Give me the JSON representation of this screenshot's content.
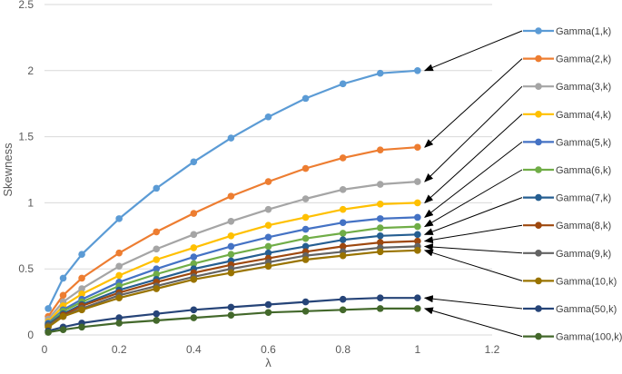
{
  "chart_data": {
    "type": "line",
    "title": "",
    "xlabel": "λ",
    "ylabel": "Skewness",
    "xlim": [
      0,
      1.2
    ],
    "ylim": [
      0,
      2.5
    ],
    "xticks": [
      "0",
      "0.2",
      "0.4",
      "0.6",
      "0.8",
      "1",
      "1.2"
    ],
    "yticks": [
      "0",
      "0.5",
      "1",
      "1.5",
      "2",
      "2.5"
    ],
    "grid": "horizontal",
    "legend_placement": "right",
    "x": [
      0.01,
      0.05,
      0.1,
      0.2,
      0.3,
      0.4,
      0.5,
      0.6,
      0.7,
      0.8,
      0.9,
      1.0
    ],
    "series": [
      {
        "name": "Gamma(1,k)",
        "color": "#5b9bd5",
        "values": [
          0.2,
          0.43,
          0.61,
          0.88,
          1.11,
          1.31,
          1.49,
          1.65,
          1.79,
          1.9,
          1.98,
          2.0
        ]
      },
      {
        "name": "Gamma(2,k)",
        "color": "#ed7d31",
        "values": [
          0.14,
          0.3,
          0.43,
          0.62,
          0.78,
          0.92,
          1.05,
          1.16,
          1.26,
          1.34,
          1.4,
          1.42
        ]
      },
      {
        "name": "Gamma(3,k)",
        "color": "#a5a5a5",
        "values": [
          0.12,
          0.25,
          0.35,
          0.52,
          0.65,
          0.76,
          0.86,
          0.95,
          1.03,
          1.1,
          1.14,
          1.16
        ]
      },
      {
        "name": "Gamma(4,k)",
        "color": "#ffc000",
        "values": [
          0.1,
          0.22,
          0.31,
          0.45,
          0.57,
          0.66,
          0.75,
          0.83,
          0.89,
          0.95,
          0.99,
          1.0
        ]
      },
      {
        "name": "Gamma(5,k)",
        "color": "#4472c4",
        "values": [
          0.09,
          0.19,
          0.27,
          0.4,
          0.5,
          0.59,
          0.67,
          0.74,
          0.8,
          0.85,
          0.88,
          0.89
        ]
      },
      {
        "name": "Gamma(6,k)",
        "color": "#70ad47",
        "values": [
          0.08,
          0.18,
          0.25,
          0.37,
          0.46,
          0.54,
          0.61,
          0.67,
          0.73,
          0.77,
          0.81,
          0.82
        ]
      },
      {
        "name": "Gamma(7,k)",
        "color": "#255e91",
        "values": [
          0.08,
          0.16,
          0.23,
          0.34,
          0.42,
          0.5,
          0.56,
          0.62,
          0.67,
          0.72,
          0.75,
          0.76
        ]
      },
      {
        "name": "Gamma(8,k)",
        "color": "#9e480e",
        "values": [
          0.07,
          0.15,
          0.22,
          0.32,
          0.4,
          0.47,
          0.53,
          0.58,
          0.63,
          0.67,
          0.7,
          0.71
        ]
      },
      {
        "name": "Gamma(9,k)",
        "color": "#636363",
        "values": [
          0.07,
          0.14,
          0.2,
          0.3,
          0.37,
          0.44,
          0.5,
          0.55,
          0.6,
          0.63,
          0.66,
          0.67
        ]
      },
      {
        "name": "Gamma(10,k)",
        "color": "#997300",
        "values": [
          0.06,
          0.14,
          0.19,
          0.28,
          0.35,
          0.42,
          0.47,
          0.52,
          0.57,
          0.6,
          0.63,
          0.64
        ]
      },
      {
        "name": "Gamma(50,k)",
        "color": "#264478",
        "values": [
          0.03,
          0.06,
          0.09,
          0.13,
          0.16,
          0.19,
          0.21,
          0.23,
          0.25,
          0.27,
          0.28,
          0.28
        ]
      },
      {
        "name": "Gamma(100,k)",
        "color": "#43682b",
        "values": [
          0.02,
          0.04,
          0.06,
          0.09,
          0.11,
          0.13,
          0.15,
          0.17,
          0.18,
          0.19,
          0.2,
          0.2
        ]
      }
    ]
  }
}
